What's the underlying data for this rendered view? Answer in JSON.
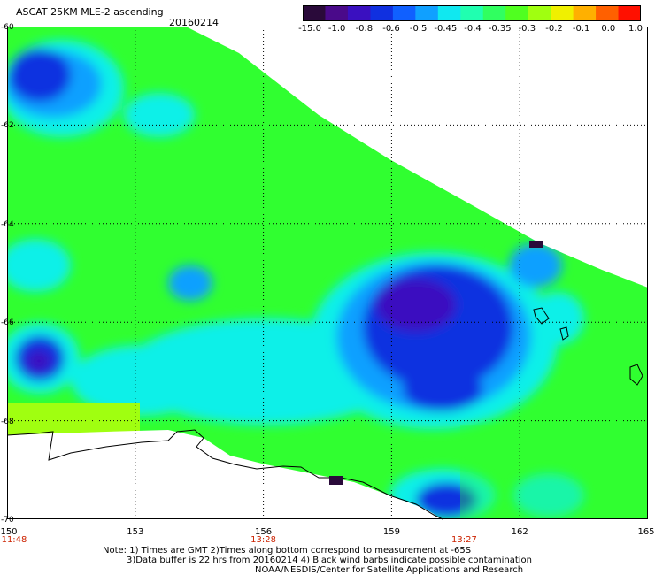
{
  "header": {
    "title": "ASCAT 25KM MLE-2 ascending",
    "date": "20160214"
  },
  "colorbar": {
    "labels": [
      "-15.0",
      "-1.0",
      "-0.8",
      "-0.6",
      "-0.5",
      "-0.45",
      "-0.4",
      "-0.35",
      "-0.3",
      "-0.2",
      "-0.1",
      "0.0",
      "1.0"
    ],
    "colors": [
      "#2a0a3a",
      "#4a0a8a",
      "#3a10c0",
      "#1030e0",
      "#1060ff",
      "#10a0ff",
      "#10e8f0",
      "#20ffb0",
      "#30ff60",
      "#50ff20",
      "#a0ff10",
      "#f0f000",
      "#ffb000",
      "#ff6000",
      "#ff1000"
    ]
  },
  "map": {
    "lon_range": [
      150,
      165
    ],
    "lat_range": [
      -70,
      -60
    ],
    "lat_labels": [
      "-60",
      "-62",
      "-64",
      "-66",
      "-68",
      "-70"
    ],
    "lon_labels": [
      "150",
      "153",
      "156",
      "159",
      "162",
      "165"
    ],
    "time_labels": [
      {
        "lon": 150,
        "text": "11:48"
      },
      {
        "lon": 156,
        "text": "13:28"
      },
      {
        "lon": 160.7,
        "text": "13:27"
      }
    ],
    "colors": {
      "green": "#30ff30",
      "yellow_green": "#a0ff10",
      "cyan": "#10f0e8",
      "light_blue": "#10a0ff",
      "blue": "#1030e0",
      "purple": "#3a10c0",
      "dark": "#2a0a3a",
      "grid": "#000000",
      "coast": "#000000"
    }
  },
  "notes": {
    "line1": "Note: 1) Times are GMT 2)Times along bottom correspond to measurement at -65S",
    "line2": "3)Data buffer is 22 hrs from 20160214 4) Black wind barbs indicate possible contamination",
    "line3": "NOAA/NESDIS/Center for Satellite Applications and Research"
  }
}
